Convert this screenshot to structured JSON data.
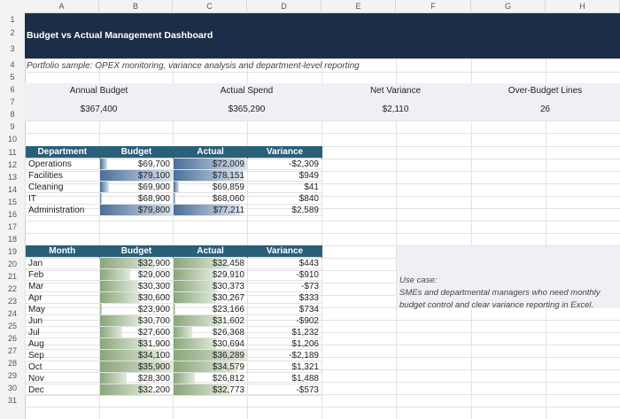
{
  "columns": [
    "A",
    "B",
    "C",
    "D",
    "E",
    "F",
    "G",
    "H"
  ],
  "rows": [
    "1",
    "2",
    "3",
    "4",
    "5",
    "6",
    "7",
    "8",
    "9",
    "10",
    "11",
    "12",
    "13",
    "14",
    "15",
    "16",
    "17",
    "18",
    "19",
    "20",
    "21",
    "22",
    "23",
    "24",
    "25",
    "26",
    "27",
    "28",
    "29",
    "30",
    "31"
  ],
  "title": "Budget vs Actual Management Dashboard",
  "subtitle": "Portfolio sample: OPEX monitoring, variance analysis and department-level reporting",
  "kpis": [
    {
      "label": "Annual Budget",
      "value": "$367,400"
    },
    {
      "label": "Actual Spend",
      "value": "$365,290"
    },
    {
      "label": "Net Variance",
      "value": "$2,110"
    },
    {
      "label": "Over-Budget Lines",
      "value": "26"
    }
  ],
  "dept_table": {
    "headers": [
      "Department",
      "Budget",
      "Actual",
      "Variance"
    ],
    "rows": [
      {
        "name": "Operations",
        "budget": "$69,700",
        "actual": "$72,009",
        "variance": "-$2,309",
        "budget_fill": 0.1,
        "actual_fill": 1.0
      },
      {
        "name": "Facilities",
        "budget": "$79,100",
        "actual": "$78,151",
        "variance": "$949",
        "budget_fill": 1.0,
        "actual_fill": 0.95
      },
      {
        "name": "Cleaning",
        "budget": "$69,900",
        "actual": "$69,859",
        "variance": "$41",
        "budget_fill": 0.12,
        "actual_fill": 0.07
      },
      {
        "name": "IT",
        "budget": "$68,900",
        "actual": "$68,060",
        "variance": "$840",
        "budget_fill": 0.02,
        "actual_fill": 0.02
      },
      {
        "name": "Administration",
        "budget": "$79,800",
        "actual": "$77,211",
        "variance": "$2,589",
        "budget_fill": 1.0,
        "actual_fill": 0.9
      }
    ]
  },
  "month_table": {
    "headers": [
      "Month",
      "Budget",
      "Actual",
      "Variance"
    ],
    "rows": [
      {
        "name": "Jan",
        "budget": "$32,900",
        "actual": "$32,458",
        "variance": "$443",
        "budget_fill": 0.74,
        "actual_fill": 0.74
      },
      {
        "name": "Feb",
        "budget": "$29,000",
        "actual": "$29,910",
        "variance": "-$910",
        "budget_fill": 0.42,
        "actual_fill": 0.55
      },
      {
        "name": "Mar",
        "budget": "$30,300",
        "actual": "$30,373",
        "variance": "-$73",
        "budget_fill": 0.52,
        "actual_fill": 0.59
      },
      {
        "name": "Apr",
        "budget": "$30,600",
        "actual": "$30,267",
        "variance": "$333",
        "budget_fill": 0.55,
        "actual_fill": 0.58
      },
      {
        "name": "May",
        "budget": "$23,900",
        "actual": "$23,166",
        "variance": "$734",
        "budget_fill": 0.03,
        "actual_fill": 0.03
      },
      {
        "name": "Jun",
        "budget": "$30,700",
        "actual": "$31,602",
        "variance": "-$902",
        "budget_fill": 0.56,
        "actual_fill": 0.65
      },
      {
        "name": "Jul",
        "budget": "$27,600",
        "actual": "$26,368",
        "variance": "$1,232",
        "budget_fill": 0.3,
        "actual_fill": 0.25
      },
      {
        "name": "Aug",
        "budget": "$31,900",
        "actual": "$30,694",
        "variance": "$1,206",
        "budget_fill": 0.65,
        "actual_fill": 0.58
      },
      {
        "name": "Sep",
        "budget": "$34,100",
        "actual": "$36,289",
        "variance": "-$2,189",
        "budget_fill": 0.85,
        "actual_fill": 1.0
      },
      {
        "name": "Oct",
        "budget": "$35,900",
        "actual": "$34,579",
        "variance": "$1,321",
        "budget_fill": 1.0,
        "actual_fill": 0.85
      },
      {
        "name": "Nov",
        "budget": "$28,300",
        "actual": "$26,812",
        "variance": "$1,488",
        "budget_fill": 0.37,
        "actual_fill": 0.29
      },
      {
        "name": "Dec",
        "budget": "$32,200",
        "actual": "$32,773",
        "variance": "-$573",
        "budget_fill": 0.68,
        "actual_fill": 0.76
      }
    ]
  },
  "use_case": {
    "line1": "Use case:",
    "line2": "SMEs and departmental managers who need monthly",
    "line3": "budget control and clear variance reporting in Excel."
  },
  "colors": {
    "title_bg": "#1c2e47",
    "table_header_bg": "#2a5f7a",
    "kpi_band_bg": "#eef0f4",
    "dept_bar": "#4a6f98",
    "month_bar": "#8aa67a"
  }
}
